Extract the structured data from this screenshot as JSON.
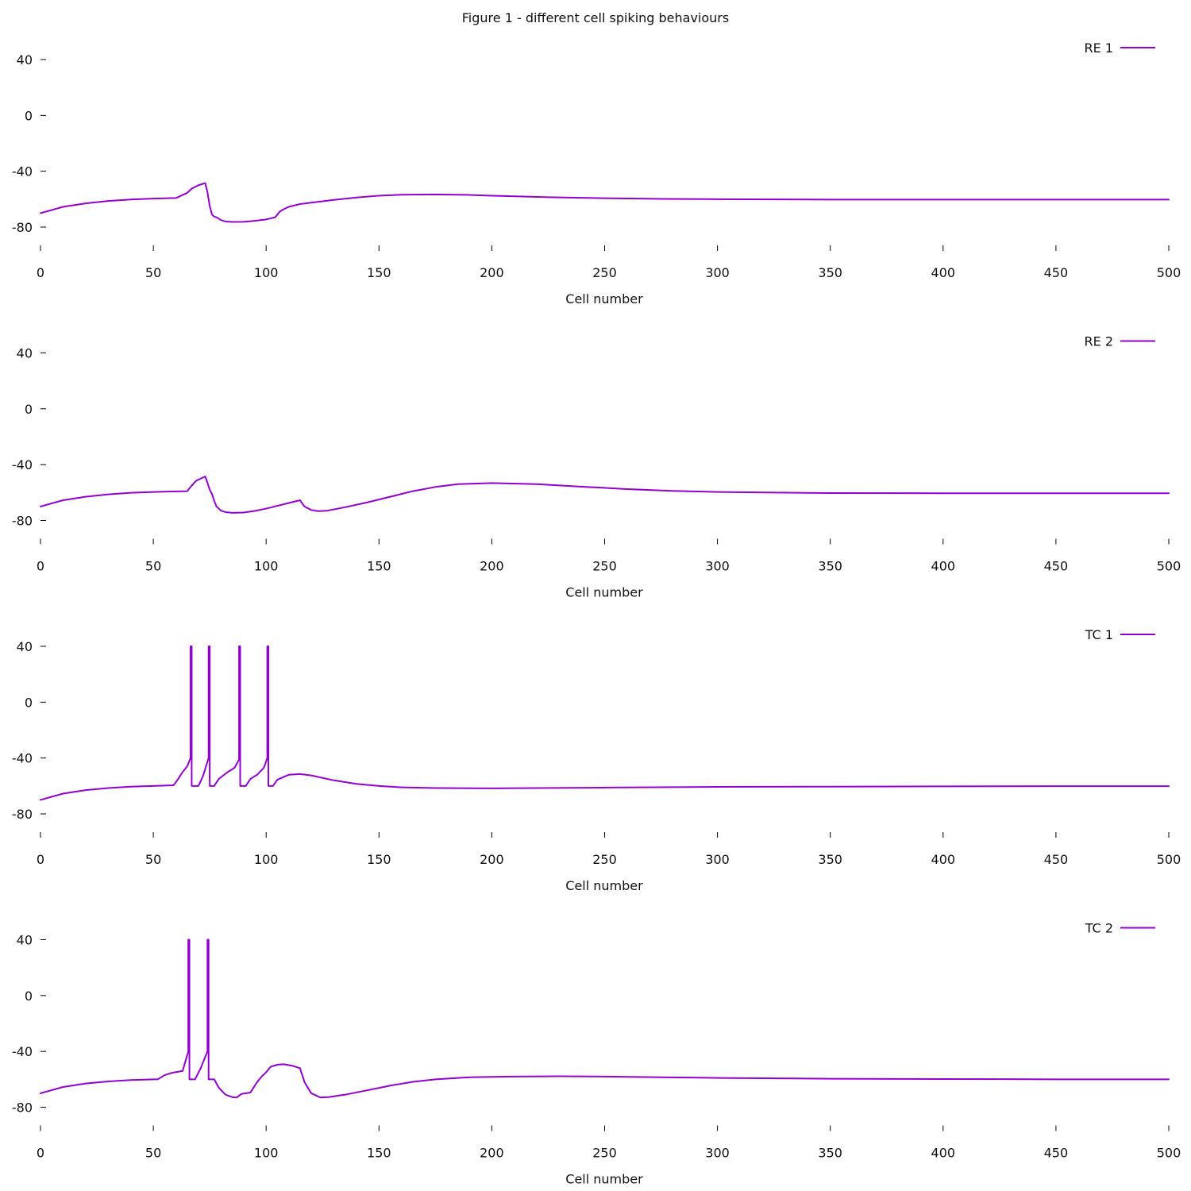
{
  "figure": {
    "title": "Figure 1 - different cell spiking behaviours",
    "line_color": "#9400d3"
  },
  "chart_data": [
    {
      "type": "line",
      "title": "",
      "xlabel": "Cell number",
      "ylabel": "",
      "xlim": [
        0,
        500
      ],
      "ylim": [
        -95,
        48
      ],
      "x_ticks": [
        0,
        50,
        100,
        150,
        200,
        250,
        300,
        350,
        400,
        450,
        500
      ],
      "y_ticks": [
        40,
        0,
        -40,
        -80
      ],
      "grid": false,
      "legend_position": "top-right",
      "series": [
        {
          "name": "RE 1",
          "color": "#9400d3",
          "points": [
            [
              0,
              -70
            ],
            [
              10,
              -65.5
            ],
            [
              20,
              -63
            ],
            [
              30,
              -61.3
            ],
            [
              40,
              -60.2
            ],
            [
              50,
              -59.6
            ],
            [
              60,
              -59.2
            ],
            [
              63,
              -57
            ],
            [
              65,
              -55.5
            ],
            [
              67,
              -52.5
            ],
            [
              70,
              -50
            ],
            [
              72,
              -49
            ],
            [
              73,
              -48.5
            ],
            [
              74,
              -55
            ],
            [
              75,
              -65
            ],
            [
              76,
              -71
            ],
            [
              77,
              -72.5
            ],
            [
              78,
              -73
            ],
            [
              79,
              -74
            ],
            [
              80,
              -75
            ],
            [
              82,
              -76
            ],
            [
              85,
              -76.3
            ],
            [
              90,
              -76.2
            ],
            [
              95,
              -75.5
            ],
            [
              100,
              -74.5
            ],
            [
              104,
              -73
            ],
            [
              106,
              -69
            ],
            [
              108,
              -67
            ],
            [
              110,
              -65.5
            ],
            [
              115,
              -63.5
            ],
            [
              120,
              -62.5
            ],
            [
              130,
              -60.5
            ],
            [
              140,
              -58.8
            ],
            [
              150,
              -57.5
            ],
            [
              160,
              -56.8
            ],
            [
              175,
              -56.6
            ],
            [
              190,
              -57
            ],
            [
              200,
              -57.5
            ],
            [
              225,
              -58.6
            ],
            [
              250,
              -59.3
            ],
            [
              275,
              -59.8
            ],
            [
              300,
              -60
            ],
            [
              350,
              -60.3
            ],
            [
              400,
              -60.3
            ],
            [
              450,
              -60.3
            ],
            [
              500,
              -60.3
            ]
          ]
        }
      ]
    },
    {
      "type": "line",
      "title": "",
      "xlabel": "Cell number",
      "ylabel": "",
      "xlim": [
        0,
        500
      ],
      "ylim": [
        -95,
        48
      ],
      "x_ticks": [
        0,
        50,
        100,
        150,
        200,
        250,
        300,
        350,
        400,
        450,
        500
      ],
      "y_ticks": [
        40,
        0,
        -40,
        -80
      ],
      "grid": false,
      "legend_position": "top-right",
      "series": [
        {
          "name": "RE 2",
          "color": "#9400d3",
          "points": [
            [
              0,
              -70
            ],
            [
              10,
              -65.5
            ],
            [
              20,
              -63
            ],
            [
              30,
              -61.3
            ],
            [
              40,
              -60.2
            ],
            [
              50,
              -59.6
            ],
            [
              60,
              -59.2
            ],
            [
              65,
              -59
            ],
            [
              67,
              -55
            ],
            [
              69,
              -51.5
            ],
            [
              71,
              -50
            ],
            [
              73,
              -48.5
            ],
            [
              74,
              -53
            ],
            [
              75,
              -58
            ],
            [
              76,
              -61
            ],
            [
              77,
              -66
            ],
            [
              78,
              -70
            ],
            [
              80,
              -73
            ],
            [
              82,
              -74
            ],
            [
              85,
              -74.5
            ],
            [
              90,
              -74.3
            ],
            [
              95,
              -73.2
            ],
            [
              100,
              -71.5
            ],
            [
              105,
              -69.5
            ],
            [
              110,
              -67.5
            ],
            [
              115,
              -65.5
            ],
            [
              117,
              -70
            ],
            [
              120,
              -72.5
            ],
            [
              123,
              -73.3
            ],
            [
              127,
              -73
            ],
            [
              135,
              -70.5
            ],
            [
              145,
              -67
            ],
            [
              155,
              -63
            ],
            [
              165,
              -59
            ],
            [
              175,
              -56
            ],
            [
              185,
              -54
            ],
            [
              200,
              -53.2
            ],
            [
              220,
              -54
            ],
            [
              240,
              -55.8
            ],
            [
              260,
              -57.5
            ],
            [
              280,
              -58.8
            ],
            [
              300,
              -59.6
            ],
            [
              350,
              -60.4
            ],
            [
              400,
              -60.5
            ],
            [
              450,
              -60.5
            ],
            [
              500,
              -60.5
            ]
          ]
        }
      ]
    },
    {
      "type": "line",
      "title": "",
      "xlabel": "Cell number",
      "ylabel": "",
      "xlim": [
        0,
        500
      ],
      "ylim": [
        -95,
        48
      ],
      "x_ticks": [
        0,
        50,
        100,
        150,
        200,
        250,
        300,
        350,
        400,
        450,
        500
      ],
      "y_ticks": [
        40,
        0,
        -40,
        -80
      ],
      "grid": false,
      "legend_position": "top-right",
      "series": [
        {
          "name": "TC 1",
          "color": "#9400d3",
          "points": [
            [
              0,
              -70
            ],
            [
              10,
              -65.5
            ],
            [
              20,
              -63
            ],
            [
              30,
              -61.5
            ],
            [
              40,
              -60.5
            ],
            [
              50,
              -60
            ],
            [
              59,
              -59.5
            ],
            [
              61,
              -55
            ],
            [
              63,
              -50
            ],
            [
              65,
              -46
            ],
            [
              66.5,
              -40
            ],
            [
              66.5,
              40
            ],
            [
              67,
              40
            ],
            [
              67,
              -60
            ],
            [
              70,
              -60
            ],
            [
              72,
              -53
            ],
            [
              74.5,
              -40
            ],
            [
              74.5,
              40
            ],
            [
              75,
              40
            ],
            [
              75,
              -60
            ],
            [
              77,
              -60
            ],
            [
              79,
              -55
            ],
            [
              83,
              -50
            ],
            [
              86,
              -47
            ],
            [
              88,
              -41
            ],
            [
              88,
              40
            ],
            [
              88.5,
              40
            ],
            [
              88.5,
              -60
            ],
            [
              91,
              -60
            ],
            [
              93,
              -55
            ],
            [
              96,
              -52
            ],
            [
              99,
              -47
            ],
            [
              100.5,
              -40
            ],
            [
              100.5,
              40
            ],
            [
              101,
              40
            ],
            [
              101,
              -60
            ],
            [
              103,
              -60
            ],
            [
              105,
              -55.5
            ],
            [
              110,
              -52
            ],
            [
              115,
              -51.5
            ],
            [
              120,
              -52.5
            ],
            [
              130,
              -56
            ],
            [
              140,
              -58.5
            ],
            [
              150,
              -60
            ],
            [
              160,
              -61
            ],
            [
              175,
              -61.5
            ],
            [
              200,
              -61.7
            ],
            [
              250,
              -61.2
            ],
            [
              300,
              -60.7
            ],
            [
              350,
              -60.5
            ],
            [
              400,
              -60.3
            ],
            [
              450,
              -60.2
            ],
            [
              500,
              -60.2
            ]
          ]
        }
      ]
    },
    {
      "type": "line",
      "title": "",
      "xlabel": "Cell number",
      "ylabel": "",
      "xlim": [
        0,
        500
      ],
      "ylim": [
        -95,
        48
      ],
      "x_ticks": [
        0,
        50,
        100,
        150,
        200,
        250,
        300,
        350,
        400,
        450,
        500
      ],
      "y_ticks": [
        40,
        0,
        -40,
        -80
      ],
      "grid": false,
      "legend_position": "top-right",
      "series": [
        {
          "name": "TC 2",
          "color": "#9400d3",
          "points": [
            [
              0,
              -70
            ],
            [
              10,
              -65.5
            ],
            [
              20,
              -63
            ],
            [
              30,
              -61.5
            ],
            [
              40,
              -60.5
            ],
            [
              50,
              -60
            ],
            [
              52,
              -60
            ],
            [
              55,
              -57
            ],
            [
              58,
              -55.5
            ],
            [
              63,
              -54
            ],
            [
              65.5,
              -40
            ],
            [
              65.5,
              40
            ],
            [
              66,
              40
            ],
            [
              66,
              -60
            ],
            [
              68.5,
              -60
            ],
            [
              71,
              -52
            ],
            [
              74,
              -40
            ],
            [
              74,
              40
            ],
            [
              74.5,
              40
            ],
            [
              74.5,
              -60
            ],
            [
              77,
              -60
            ],
            [
              79,
              -66
            ],
            [
              82,
              -71
            ],
            [
              85,
              -72.8
            ],
            [
              87,
              -73
            ],
            [
              89,
              -70.5
            ],
            [
              93,
              -69.5
            ],
            [
              96,
              -62
            ],
            [
              98,
              -58
            ],
            [
              100,
              -55
            ],
            [
              102,
              -51
            ],
            [
              105,
              -49.5
            ],
            [
              108,
              -49.2
            ],
            [
              112,
              -50.5
            ],
            [
              115,
              -52
            ],
            [
              117,
              -62
            ],
            [
              120,
              -70
            ],
            [
              124,
              -73
            ],
            [
              128,
              -72.7
            ],
            [
              135,
              -71
            ],
            [
              145,
              -67.8
            ],
            [
              155,
              -64.5
            ],
            [
              165,
              -61.8
            ],
            [
              175,
              -60
            ],
            [
              190,
              -58.5
            ],
            [
              210,
              -58
            ],
            [
              230,
              -57.8
            ],
            [
              250,
              -58
            ],
            [
              275,
              -58.5
            ],
            [
              300,
              -59
            ],
            [
              350,
              -59.6
            ],
            [
              400,
              -59.8
            ],
            [
              450,
              -60
            ],
            [
              500,
              -60
            ]
          ]
        }
      ]
    }
  ]
}
